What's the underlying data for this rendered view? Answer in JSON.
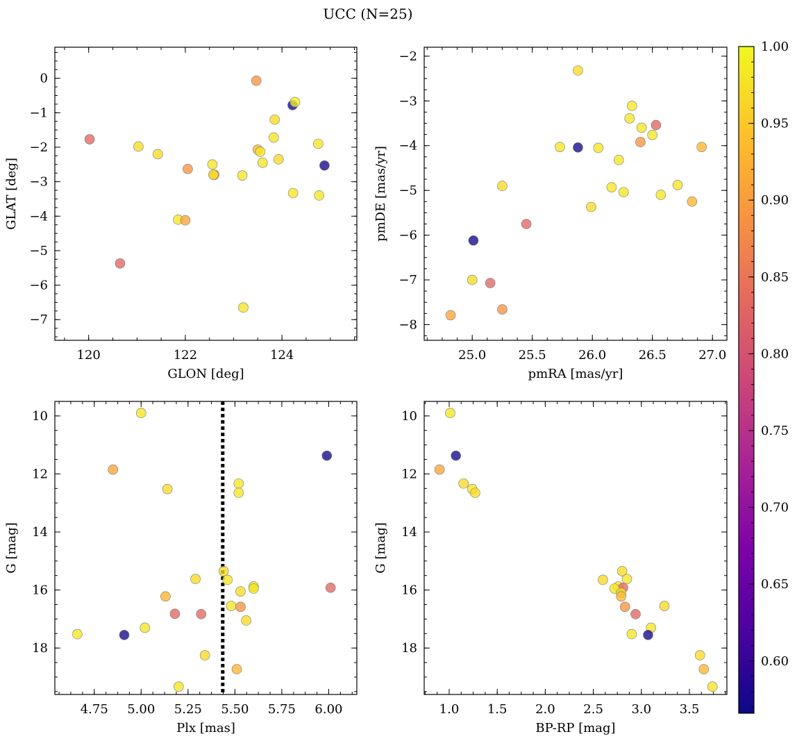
{
  "figure": {
    "title": "UCC (N=25)"
  },
  "colorbar": {
    "vmin": 0.566,
    "vmax": 1.0,
    "ticks": [
      0.6,
      0.65,
      0.7,
      0.75,
      0.8,
      0.85,
      0.9,
      0.95,
      1.0
    ],
    "tick_labels": [
      "0.60",
      "0.65",
      "0.70",
      "0.75",
      "0.80",
      "0.85",
      "0.90",
      "0.95",
      "1.00"
    ],
    "colormap": "plasma"
  },
  "chart_data": [
    {
      "type": "scatter",
      "xlabel": "GLON [deg]",
      "ylabel": "GLAT [deg]",
      "xlim": [
        119.3,
        125.55
      ],
      "ylim": [
        -7.6,
        0.9
      ],
      "y_inverted": false,
      "xticks": [
        120,
        122,
        124
      ],
      "xtick_labels": [
        "120",
        "122",
        "124"
      ],
      "yticks": [
        0,
        -1,
        -2,
        -3,
        -4,
        -5,
        -6,
        -7
      ],
      "ytick_labels": [
        "0",
        "−1",
        "−2",
        "−3",
        "−4",
        "−5",
        "−6",
        "−7"
      ],
      "x": [
        120.02,
        121.03,
        121.43,
        122.05,
        122.56,
        122.6,
        122.58,
        123.18,
        123.47,
        123.5,
        123.55,
        123.6,
        123.83,
        123.85,
        123.93,
        124.22,
        124.23,
        124.27,
        124.75,
        124.77,
        124.88,
        121.85,
        122.0,
        120.65,
        123.2
      ],
      "y": [
        -1.77,
        -1.98,
        -2.2,
        -2.63,
        -2.5,
        -2.8,
        -2.8,
        -2.82,
        -0.07,
        -2.07,
        -2.13,
        -2.45,
        -1.72,
        -1.2,
        -2.35,
        -0.78,
        -3.33,
        -0.69,
        -1.9,
        -3.4,
        -2.53,
        -4.1,
        -4.12,
        -5.37,
        -6.65
      ],
      "c": [
        0.83,
        0.97,
        0.97,
        0.89,
        0.98,
        0.93,
        0.97,
        0.98,
        0.89,
        0.93,
        0.98,
        0.98,
        0.98,
        0.97,
        0.97,
        0.57,
        0.98,
        0.99,
        0.98,
        0.98,
        0.57,
        0.98,
        0.91,
        0.83,
        0.98
      ]
    },
    {
      "type": "scatter",
      "xlabel": "pmRA [mas/yr]",
      "ylabel": "pmDE [mas/yr]",
      "xlim": [
        24.6,
        27.12
      ],
      "ylim": [
        -8.35,
        -1.8
      ],
      "y_inverted": false,
      "xticks": [
        25.0,
        25.5,
        26.0,
        26.5,
        27.0
      ],
      "xtick_labels": [
        "25.0",
        "25.5",
        "26.0",
        "26.5",
        "27.0"
      ],
      "yticks": [
        -2,
        -3,
        -4,
        -5,
        -6,
        -7,
        -8
      ],
      "ytick_labels": [
        "−2",
        "−3",
        "−4",
        "−5",
        "−6",
        "−7",
        "−8"
      ],
      "x": [
        25.88,
        26.33,
        26.31,
        26.41,
        26.53,
        26.4,
        26.5,
        25.73,
        25.88,
        26.05,
        26.91,
        26.22,
        26.16,
        25.25,
        26.26,
        26.71,
        26.57,
        26.83,
        25.99,
        25.45,
        25.01,
        25.0,
        25.15,
        24.82,
        25.25
      ],
      "y": [
        -2.32,
        -3.11,
        -3.39,
        -3.6,
        -3.54,
        -3.92,
        -3.76,
        -4.03,
        -4.04,
        -4.05,
        -4.03,
        -4.32,
        -4.93,
        -4.9,
        -5.04,
        -4.88,
        -5.1,
        -5.25,
        -5.37,
        -5.75,
        -6.12,
        -7.0,
        -7.07,
        -7.79,
        -7.66
      ],
      "c": [
        0.97,
        0.98,
        0.98,
        0.98,
        0.83,
        0.89,
        0.98,
        0.98,
        0.57,
        0.98,
        0.93,
        0.98,
        0.98,
        0.97,
        0.98,
        0.98,
        0.98,
        0.93,
        0.97,
        0.83,
        0.57,
        0.97,
        0.83,
        0.91,
        0.89
      ]
    },
    {
      "type": "scatter",
      "xlabel": "Plx [mas]",
      "ylabel": "G [mag]",
      "xlim": [
        4.54,
        6.15
      ],
      "ylim": [
        9.5,
        19.6
      ],
      "y_inverted": true,
      "xticks": [
        4.75,
        5.0,
        5.25,
        5.5,
        5.75,
        6.0
      ],
      "xtick_labels": [
        "4.75",
        "5.00",
        "5.25",
        "5.50",
        "5.75",
        "6.00"
      ],
      "yticks": [
        10,
        12,
        14,
        16,
        18
      ],
      "ytick_labels": [
        "10",
        "12",
        "14",
        "16",
        "18"
      ],
      "vline": {
        "x": 5.435,
        "style": "dotted"
      },
      "x": [
        5.0,
        4.85,
        5.14,
        5.52,
        5.52,
        5.99,
        5.29,
        5.44,
        5.46,
        5.6,
        5.6,
        5.53,
        5.13,
        6.01,
        5.48,
        5.53,
        5.56,
        5.18,
        5.32,
        4.66,
        4.91,
        5.02,
        5.34,
        5.51,
        5.2
      ],
      "y": [
        9.9,
        11.85,
        12.52,
        12.33,
        12.65,
        11.37,
        15.62,
        15.35,
        15.65,
        15.88,
        15.95,
        16.05,
        16.22,
        15.92,
        16.55,
        16.58,
        17.05,
        16.82,
        16.83,
        17.52,
        17.55,
        17.3,
        18.25,
        18.73,
        19.33
      ],
      "c": [
        0.98,
        0.91,
        0.97,
        0.98,
        0.98,
        0.57,
        0.97,
        0.97,
        0.98,
        0.98,
        0.98,
        0.97,
        0.93,
        0.83,
        0.98,
        0.89,
        0.97,
        0.83,
        0.83,
        0.98,
        0.57,
        0.98,
        0.97,
        0.93,
        0.98
      ]
    },
    {
      "type": "scatter",
      "xlabel": "BP-RP [mag]",
      "ylabel": "G [mag]",
      "xlim": [
        0.74,
        3.89
      ],
      "ylim": [
        9.5,
        19.6
      ],
      "y_inverted": true,
      "xticks": [
        1.0,
        1.5,
        2.0,
        2.5,
        3.0,
        3.5
      ],
      "xtick_labels": [
        "1.0",
        "1.5",
        "2.0",
        "2.5",
        "3.0",
        "3.5"
      ],
      "yticks": [
        10,
        12,
        14,
        16,
        18
      ],
      "ytick_labels": [
        "10",
        "12",
        "14",
        "16",
        "18"
      ],
      "x": [
        1.01,
        0.9,
        1.07,
        1.15,
        1.24,
        1.27,
        2.6,
        2.8,
        2.85,
        2.76,
        2.81,
        2.72,
        2.79,
        2.79,
        2.83,
        2.94,
        3.24,
        2.9,
        3.1,
        3.07,
        3.61,
        3.65,
        3.74
      ],
      "y": [
        9.9,
        11.85,
        11.37,
        12.33,
        12.52,
        12.65,
        15.65,
        15.35,
        15.62,
        15.88,
        15.92,
        15.95,
        16.1,
        16.22,
        16.58,
        16.83,
        16.55,
        17.52,
        17.3,
        17.55,
        18.25,
        18.73,
        19.33
      ],
      "c": [
        0.98,
        0.91,
        0.57,
        0.97,
        0.98,
        0.97,
        0.97,
        0.97,
        0.98,
        0.98,
        0.83,
        0.98,
        0.98,
        0.93,
        0.89,
        0.83,
        0.97,
        0.98,
        0.98,
        0.57,
        0.97,
        0.93,
        0.98
      ]
    }
  ]
}
